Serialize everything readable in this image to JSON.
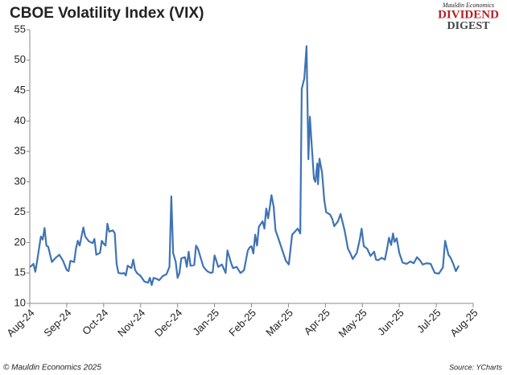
{
  "chart_data": {
    "type": "line",
    "title": "CBOE Volatility Index (VIX)",
    "brand": [
      "Mauldin Economics",
      "DIVIDEND",
      "DIGEST"
    ],
    "footer_left": "© Mauldin Economics 2025",
    "footer_right": "Source: YCharts",
    "xlim": [
      0,
      12
    ],
    "xticks": [
      {
        "value": 0,
        "label": "Aug-24"
      },
      {
        "value": 1,
        "label": "Sep-24"
      },
      {
        "value": 2,
        "label": "Oct-24"
      },
      {
        "value": 3,
        "label": "Nov-24"
      },
      {
        "value": 4,
        "label": "Dec-24"
      },
      {
        "value": 5,
        "label": "Jan-25"
      },
      {
        "value": 6,
        "label": "Feb-25"
      },
      {
        "value": 7,
        "label": "Mar-25"
      },
      {
        "value": 8,
        "label": "Apr-25"
      },
      {
        "value": 9,
        "label": "May-25"
      },
      {
        "value": 10,
        "label": "Jun-25"
      },
      {
        "value": 11,
        "label": "Jul-25"
      },
      {
        "value": 12,
        "label": "Aug-25"
      }
    ],
    "ylim": [
      10,
      55
    ],
    "yticks": [
      10,
      15,
      20,
      25,
      30,
      35,
      40,
      45,
      50,
      55
    ],
    "grid": false,
    "series": [
      {
        "name": "VIX",
        "color": "#3f73b5",
        "x": [
          0,
          0.05,
          0.1,
          0.15,
          0.2,
          0.25,
          0.3,
          0.35,
          0.4,
          0.45,
          0.5,
          0.55,
          0.6,
          0.7,
          0.8,
          0.9,
          1.0,
          1.05,
          1.1,
          1.2,
          1.25,
          1.3,
          1.35,
          1.45,
          1.5,
          1.6,
          1.7,
          1.75,
          1.8,
          1.9,
          1.95,
          2.0,
          2.05,
          2.1,
          2.15,
          2.25,
          2.3,
          2.35,
          2.4,
          2.5,
          2.55,
          2.6,
          2.65,
          2.75,
          2.8,
          2.85,
          2.9,
          3.0,
          3.1,
          3.2,
          3.25,
          3.3,
          3.35,
          3.45,
          3.5,
          3.6,
          3.7,
          3.78,
          3.83,
          3.88,
          3.95,
          4.0,
          4.05,
          4.1,
          4.2,
          4.25,
          4.3,
          4.35,
          4.45,
          4.5,
          4.55,
          4.6,
          4.7,
          4.8,
          4.9,
          4.95,
          5.0,
          5.05,
          5.1,
          5.2,
          5.3,
          5.35,
          5.45,
          5.5,
          5.6,
          5.7,
          5.75,
          5.8,
          5.9,
          5.95,
          6.0,
          6.05,
          6.1,
          6.15,
          6.2,
          6.3,
          6.35,
          6.4,
          6.45,
          6.5,
          6.54,
          6.6,
          6.65,
          6.71,
          6.82,
          6.93,
          7.01,
          7.1,
          7.25,
          7.32,
          7.36,
          7.43,
          7.49,
          7.54,
          7.58,
          7.63,
          7.69,
          7.73,
          7.78,
          7.8,
          7.84,
          7.91,
          7.97,
          8.02,
          8.13,
          8.19,
          8.24,
          8.34,
          8.41,
          8.52,
          8.61,
          8.67,
          8.74,
          8.85,
          8.93,
          8.98,
          9.04,
          9.13,
          9.22,
          9.32,
          9.37,
          9.43,
          9.52,
          9.61,
          9.67,
          9.72,
          9.78,
          9.83,
          9.87,
          9.93,
          10.0,
          10.09,
          10.2,
          10.3,
          10.39,
          10.48,
          10.57,
          10.63,
          10.74,
          10.85,
          10.96,
          11.07,
          11.18,
          11.24,
          11.33,
          11.39,
          11.46,
          11.53,
          11.61
        ],
        "values": [
          16,
          16.2,
          16.5,
          15.2,
          17,
          19,
          21,
          20.5,
          22.4,
          19.5,
          19.3,
          18,
          16.8,
          17.5,
          18,
          17,
          15.5,
          15.3,
          17,
          16.8,
          19,
          20.3,
          19.5,
          22.5,
          21,
          20.2,
          19.9,
          20.6,
          18,
          18.3,
          20.3,
          19.8,
          19.5,
          23.1,
          21.8,
          22,
          21.5,
          16.5,
          15,
          14.9,
          15,
          14.6,
          16.2,
          15.8,
          17.2,
          15.5,
          15,
          14.5,
          13.6,
          13.4,
          14.2,
          13,
          14.2,
          14,
          13.8,
          14.5,
          14.8,
          16,
          27.6,
          18.3,
          16.8,
          14.2,
          15,
          17.4,
          17.6,
          16,
          18.5,
          16.2,
          16.3,
          19.5,
          19,
          18,
          16,
          15.3,
          15,
          15.1,
          17.9,
          17,
          16,
          16.4,
          15,
          18.7,
          16.6,
          15.8,
          16,
          15,
          15.2,
          15.5,
          18.7,
          19.2,
          19.4,
          18.2,
          21.3,
          19.5,
          22.6,
          23.5,
          22.3,
          25.6,
          24,
          26,
          27.8,
          25.9,
          22,
          21,
          19,
          17,
          16.4,
          21.3,
          22.3,
          21.5,
          45.3,
          47,
          52.3,
          33.7,
          40.7,
          36,
          30.5,
          30,
          33,
          29.6,
          33.8,
          31.5,
          27,
          25,
          24.6,
          23.8,
          22.7,
          23.5,
          24.7,
          22,
          19,
          18.3,
          17.3,
          18.3,
          20.5,
          22.3,
          19.4,
          19,
          17.8,
          18.5,
          17.2,
          17.1,
          17.5,
          17.2,
          19,
          20.8,
          19.6,
          21.5,
          20.1,
          20.7,
          18.3,
          16.7,
          16.5,
          16.9,
          16.6,
          17.6,
          17,
          16.4,
          16.6,
          16.5,
          15,
          14.9,
          15.9,
          20.3,
          18,
          17.5,
          16.5,
          15.3,
          16.2
        ]
      }
    ]
  }
}
